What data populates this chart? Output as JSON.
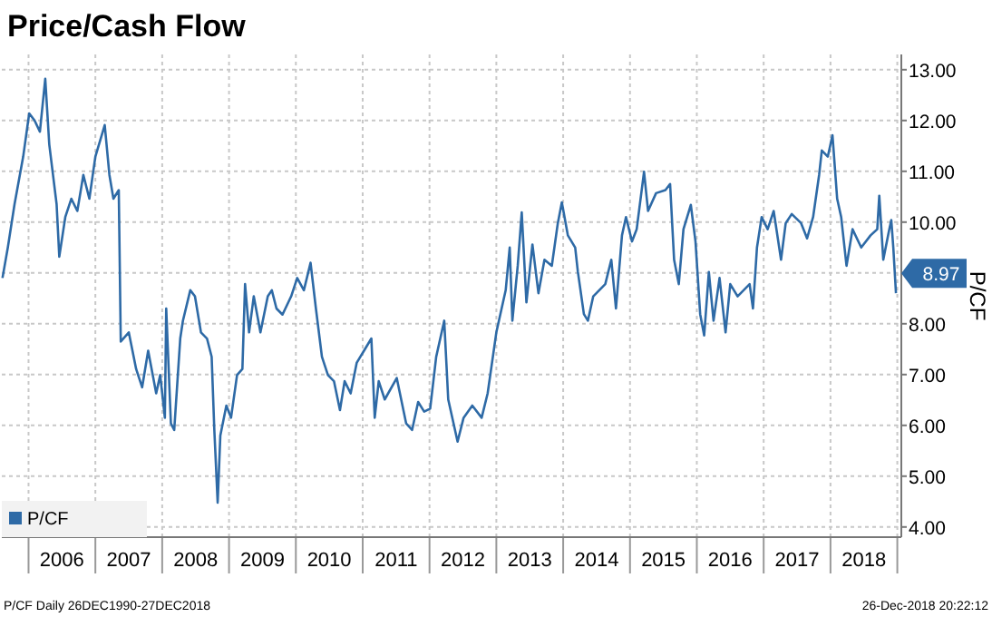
{
  "chart_data": {
    "type": "line",
    "title": "Price/Cash Flow",
    "ylabel": "P/CF",
    "legend": "bottom left",
    "grid": true,
    "xlim": [
      2005.6,
      2019.06
    ],
    "ylim": [
      3.8,
      13.3
    ],
    "xticks": [
      {
        "value": 2006,
        "label": null
      },
      {
        "value": 2006.5,
        "label": "2006"
      },
      {
        "value": 2007,
        "label": null
      },
      {
        "value": 2007.5,
        "label": "2007"
      },
      {
        "value": 2008,
        "label": null
      },
      {
        "value": 2008.5,
        "label": "2008"
      },
      {
        "value": 2009,
        "label": null
      },
      {
        "value": 2009.5,
        "label": "2009"
      },
      {
        "value": 2010,
        "label": null
      },
      {
        "value": 2010.5,
        "label": "2010"
      },
      {
        "value": 2011,
        "label": null
      },
      {
        "value": 2011.5,
        "label": "2011"
      },
      {
        "value": 2012,
        "label": null
      },
      {
        "value": 2012.5,
        "label": "2012"
      },
      {
        "value": 2013,
        "label": null
      },
      {
        "value": 2013.5,
        "label": "2013"
      },
      {
        "value": 2014,
        "label": null
      },
      {
        "value": 2014.5,
        "label": "2014"
      },
      {
        "value": 2015,
        "label": null
      },
      {
        "value": 2015.5,
        "label": "2015"
      },
      {
        "value": 2016,
        "label": null
      },
      {
        "value": 2016.5,
        "label": "2016"
      },
      {
        "value": 2017,
        "label": null
      },
      {
        "value": 2017.5,
        "label": "2017"
      },
      {
        "value": 2018,
        "label": null
      },
      {
        "value": 2018.5,
        "label": "2018"
      },
      {
        "value": 2019,
        "label": null
      }
    ],
    "yticks": [
      {
        "value": 4,
        "label": "4.00"
      },
      {
        "value": 5,
        "label": "5.00"
      },
      {
        "value": 6,
        "label": "6.00"
      },
      {
        "value": 7,
        "label": "7.00"
      },
      {
        "value": 8,
        "label": "8.00"
      },
      {
        "value": 9,
        "label": null
      },
      {
        "value": 10,
        "label": "10.00"
      },
      {
        "value": 11,
        "label": "11.00"
      },
      {
        "value": 12,
        "label": "12.00"
      },
      {
        "value": 13,
        "label": "13.00"
      }
    ],
    "annotations": [
      "8.97",
      "P/CF Daily 26DEC1990-27DEC2018",
      "26-Dec-2018 20:22:12"
    ],
    "series": [
      {
        "name": "P/CF",
        "color": "#2e6aa6",
        "x": [
          2005.61,
          2005.69,
          2005.79,
          2005.92,
          2006.01,
          2006.09,
          2006.17,
          2006.25,
          2006.31,
          2006.42,
          2006.46,
          2006.55,
          2006.64,
          2006.73,
          2006.82,
          2006.91,
          2007.0,
          2007.14,
          2007.21,
          2007.27,
          2007.35,
          2007.38,
          2007.5,
          2007.61,
          2007.7,
          2007.79,
          2007.91,
          2007.97,
          2008.04,
          2008.06,
          2008.13,
          2008.18,
          2008.27,
          2008.31,
          2008.42,
          2008.49,
          2008.58,
          2008.67,
          2008.74,
          2008.78,
          2008.83,
          2008.87,
          2008.96,
          2009.03,
          2009.12,
          2009.2,
          2009.24,
          2009.3,
          2009.37,
          2009.47,
          2009.58,
          2009.64,
          2009.71,
          2009.8,
          2009.93,
          2010.02,
          2010.12,
          2010.22,
          2010.3,
          2010.39,
          2010.48,
          2010.57,
          2010.66,
          2010.73,
          2010.82,
          2010.91,
          2011.02,
          2011.13,
          2011.18,
          2011.24,
          2011.33,
          2011.51,
          2011.65,
          2011.74,
          2011.83,
          2011.92,
          2012.01,
          2012.1,
          2012.22,
          2012.28,
          2012.42,
          2012.51,
          2012.64,
          2012.78,
          2012.87,
          2013.0,
          2013.14,
          2013.2,
          2013.24,
          2013.32,
          2013.38,
          2013.45,
          2013.54,
          2013.63,
          2013.72,
          2013.83,
          2013.92,
          2013.98,
          2014.07,
          2014.18,
          2014.22,
          2014.31,
          2014.37,
          2014.45,
          2014.63,
          2014.72,
          2014.79,
          2014.88,
          2014.94,
          2015.03,
          2015.1,
          2015.21,
          2015.27,
          2015.39,
          2015.53,
          2015.6,
          2015.66,
          2015.73,
          2015.8,
          2015.91,
          2015.98,
          2016.05,
          2016.11,
          2016.18,
          2016.25,
          2016.34,
          2016.43,
          2016.5,
          2016.61,
          2016.79,
          2016.84,
          2016.9,
          2016.97,
          2017.06,
          2017.15,
          2017.26,
          2017.33,
          2017.42,
          2017.56,
          2017.65,
          2017.74,
          2017.83,
          2017.87,
          2017.96,
          2018.03,
          2018.1,
          2018.16,
          2018.24,
          2018.33,
          2018.46,
          2018.6,
          2018.7,
          2018.73,
          2018.79,
          2018.88,
          2018.91,
          2018.94,
          2018.98
        ],
        "values": [
          8.9,
          9.5,
          10.35,
          11.29,
          12.14,
          12.0,
          11.78,
          12.82,
          11.53,
          10.35,
          9.32,
          10.1,
          10.46,
          10.22,
          10.93,
          10.46,
          11.29,
          11.91,
          10.93,
          10.46,
          10.63,
          7.65,
          7.83,
          7.11,
          6.75,
          7.47,
          6.63,
          6.99,
          6.15,
          8.3,
          6.04,
          5.91,
          7.71,
          8.06,
          8.66,
          8.54,
          7.83,
          7.71,
          7.35,
          5.91,
          4.48,
          5.8,
          6.39,
          6.15,
          6.99,
          7.11,
          8.78,
          7.83,
          8.54,
          7.83,
          8.54,
          8.66,
          8.3,
          8.18,
          8.54,
          8.9,
          8.66,
          9.2,
          8.3,
          7.35,
          6.99,
          6.87,
          6.3,
          6.87,
          6.63,
          7.23,
          7.47,
          7.71,
          6.15,
          6.87,
          6.51,
          6.93,
          6.04,
          5.91,
          6.46,
          6.27,
          6.33,
          7.35,
          8.06,
          6.51,
          5.68,
          6.15,
          6.39,
          6.15,
          6.63,
          7.83,
          8.66,
          9.5,
          8.06,
          9.14,
          10.19,
          8.42,
          9.56,
          8.6,
          9.26,
          9.14,
          9.98,
          10.39,
          9.74,
          9.5,
          9.02,
          8.19,
          8.06,
          8.54,
          8.78,
          9.26,
          8.3,
          9.74,
          10.1,
          9.62,
          9.86,
          10.99,
          10.22,
          10.57,
          10.63,
          10.75,
          9.26,
          8.78,
          9.86,
          10.34,
          9.62,
          8.19,
          7.77,
          9.02,
          8.06,
          8.9,
          7.83,
          8.78,
          8.54,
          8.78,
          8.3,
          9.5,
          10.1,
          9.86,
          10.22,
          9.26,
          9.98,
          10.16,
          9.98,
          9.68,
          10.1,
          10.93,
          11.41,
          11.29,
          11.71,
          10.46,
          10.1,
          9.14,
          9.86,
          9.5,
          9.74,
          9.86,
          10.52,
          9.26,
          9.86,
          10.04,
          9.5,
          8.6
        ]
      }
    ]
  }
}
